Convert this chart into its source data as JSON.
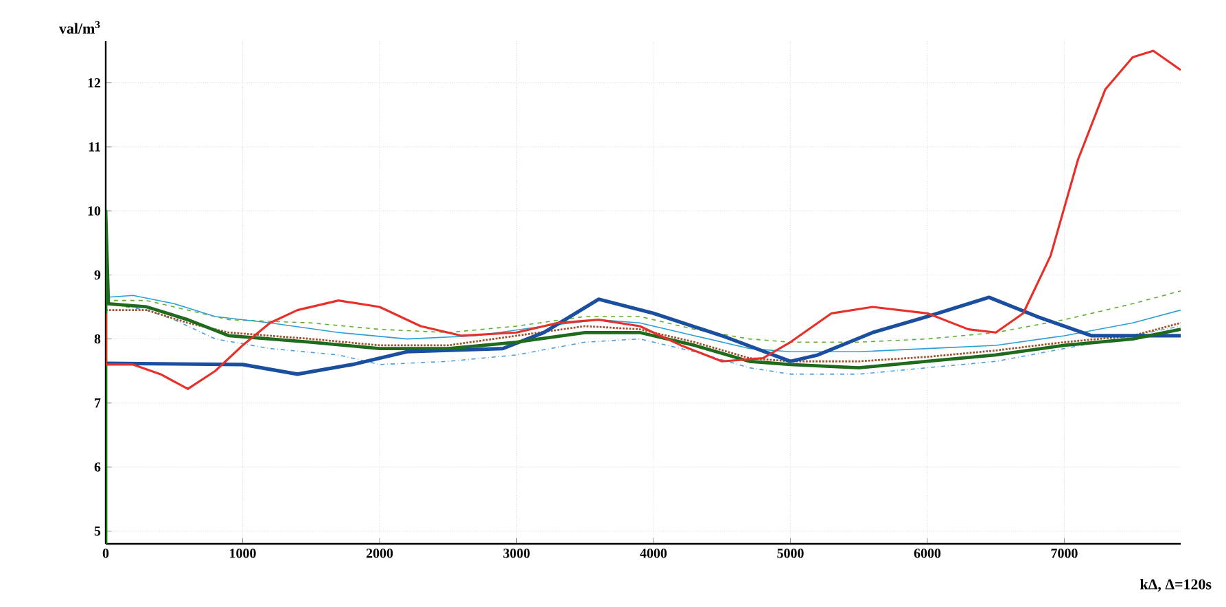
{
  "chart_data": {
    "type": "line",
    "xlabel": "kΔ, Δ=120s",
    "ylabel": "val/m$^{3}$",
    "xlim": [
      0,
      7850
    ],
    "ylim": [
      4.8,
      12.65
    ],
    "xticks": [
      0,
      1000,
      2000,
      3000,
      4000,
      5000,
      6000,
      7000
    ],
    "yticks": [
      5,
      6,
      7,
      8,
      9,
      10,
      11,
      12
    ],
    "grid": true,
    "series": [
      {
        "color": "#5cb030",
        "line_style": "dashed",
        "x": [
          0,
          300,
          600,
          900,
          1500,
          2000,
          2500,
          3000,
          3500,
          3900,
          4300,
          4700,
          5000,
          5500,
          6000,
          6500,
          7000,
          7500,
          7850
        ],
        "values": [
          8.6,
          8.6,
          8.45,
          8.3,
          8.25,
          8.15,
          8.1,
          8.2,
          8.35,
          8.35,
          8.15,
          8.0,
          7.95,
          7.95,
          8.0,
          8.1,
          8.3,
          8.55,
          8.75
        ]
      },
      {
        "color": "#2a9fd6",
        "line_style": "solid",
        "x": [
          0,
          200,
          500,
          800,
          1200,
          1700,
          2200,
          2700,
          3200,
          3600,
          3900,
          4300,
          4700,
          5000,
          5500,
          6000,
          6500,
          7000,
          7500,
          7850
        ],
        "values": [
          8.65,
          8.68,
          8.55,
          8.35,
          8.25,
          8.1,
          8.0,
          8.05,
          8.2,
          8.3,
          8.25,
          8.05,
          7.85,
          7.8,
          7.8,
          7.85,
          7.9,
          8.05,
          8.25,
          8.45
        ]
      },
      {
        "color": "#4a9ee0",
        "line_style": "dashdot",
        "x": [
          0,
          300,
          500,
          800,
          1200,
          1700,
          2000,
          2500,
          3000,
          3500,
          3900,
          4300,
          4700,
          5000,
          5500,
          6000,
          6500,
          7000,
          7500,
          7850
        ],
        "values": [
          8.55,
          8.45,
          8.3,
          8.0,
          7.85,
          7.75,
          7.6,
          7.65,
          7.75,
          7.95,
          8.0,
          7.8,
          7.55,
          7.45,
          7.45,
          7.55,
          7.65,
          7.85,
          8.05,
          8.2
        ]
      },
      {
        "color": "#a0522d",
        "line_style": "dotted",
        "x": [
          0,
          300,
          600,
          900,
          1500,
          2000,
          2500,
          3000,
          3500,
          3900,
          4300,
          4700,
          5000,
          5500,
          6000,
          6500,
          7000,
          7500,
          7850
        ],
        "values": [
          8.45,
          8.45,
          8.25,
          8.1,
          8.0,
          7.9,
          7.9,
          8.05,
          8.2,
          8.15,
          7.95,
          7.7,
          7.65,
          7.65,
          7.72,
          7.82,
          7.95,
          8.05,
          8.25
        ]
      },
      {
        "color": "#1a4fa0",
        "line_style": "solid",
        "x": [
          0,
          1000,
          1400,
          1800,
          2200,
          2900,
          3200,
          3600,
          4000,
          4500,
          5000,
          5200,
          5600,
          6000,
          6450,
          6800,
          7200,
          7850
        ],
        "values": [
          7.62,
          7.6,
          7.45,
          7.6,
          7.8,
          7.85,
          8.1,
          8.62,
          8.4,
          8.05,
          7.65,
          7.75,
          8.1,
          8.35,
          8.65,
          8.35,
          8.05,
          8.05
        ]
      },
      {
        "color": "#1e6b1e",
        "line_style": "solid",
        "x": [
          0,
          0,
          20,
          300,
          600,
          900,
          1500,
          2000,
          2500,
          3000,
          3500,
          3900,
          4300,
          4700,
          5000,
          5500,
          6000,
          6500,
          7000,
          7500,
          7850
        ],
        "values": [
          4.8,
          10,
          8.55,
          8.5,
          8.3,
          8.05,
          7.95,
          7.85,
          7.85,
          7.95,
          8.1,
          8.1,
          7.9,
          7.65,
          7.6,
          7.55,
          7.65,
          7.75,
          7.9,
          8.0,
          8.15
        ]
      },
      {
        "color": "#e8302a",
        "line_style": "solid",
        "x": [
          0,
          0,
          200,
          400,
          600,
          800,
          1000,
          1200,
          1400,
          1700,
          2000,
          2300,
          2600,
          3000,
          3300,
          3600,
          3900,
          4200,
          4500,
          4800,
          5000,
          5300,
          5600,
          6000,
          6300,
          6500,
          6700,
          6900,
          7100,
          7300,
          7500,
          7650,
          7850
        ],
        "values": [
          8.4,
          7.6,
          7.6,
          7.45,
          7.22,
          7.5,
          7.9,
          8.25,
          8.45,
          8.6,
          8.5,
          8.2,
          8.05,
          8.1,
          8.25,
          8.3,
          8.2,
          7.9,
          7.65,
          7.7,
          7.95,
          8.4,
          8.5,
          8.4,
          8.15,
          8.1,
          8.4,
          9.3,
          10.8,
          11.9,
          12.4,
          12.5,
          12.2
        ]
      }
    ]
  }
}
